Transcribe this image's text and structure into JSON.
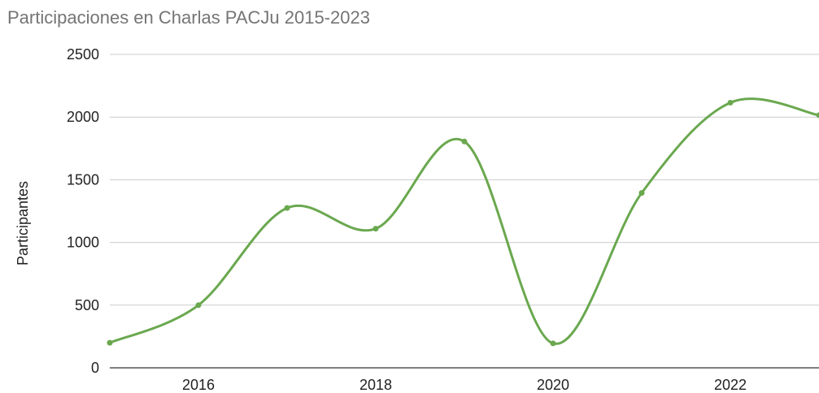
{
  "chart_data": {
    "type": "line",
    "title": "Participaciones en Charlas PACJu 2015-2023",
    "xlabel": "",
    "ylabel": "Participantes",
    "x": [
      2015,
      2016,
      2017,
      2018,
      2019,
      2020,
      2021,
      2022,
      2023
    ],
    "series": [
      {
        "values": [
          200,
          500,
          1275,
          1110,
          1805,
          195,
          1395,
          2115,
          2015
        ]
      }
    ],
    "xlim": [
      2015,
      2023
    ],
    "ylim": [
      0,
      2500
    ],
    "yticks": [
      0,
      500,
      1000,
      1500,
      2000,
      2500
    ],
    "xticks": [
      2016,
      2018,
      2020,
      2022
    ],
    "grid": true,
    "smooth": true,
    "line_color": "#6aa84f",
    "legend": "none"
  }
}
